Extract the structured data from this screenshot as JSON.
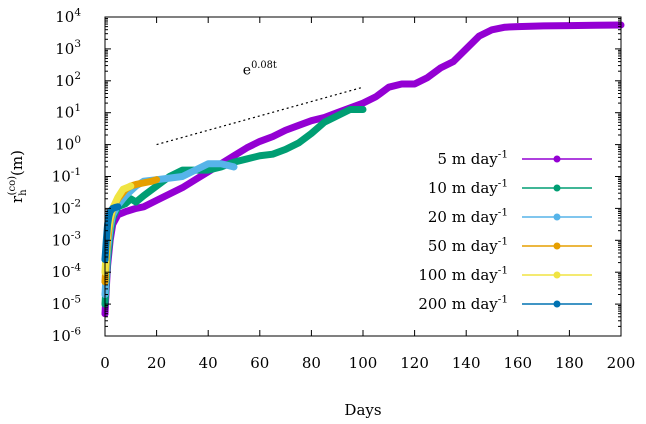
{
  "chart_data": {
    "type": "line",
    "xlabel": "Days",
    "ylabel": "r",
    "ylabel_sub": "h",
    "ylabel_sup": "(co)",
    "ylabel_unit": "(m)",
    "xlim": [
      0,
      200
    ],
    "ylim_log10": [
      -6,
      4
    ],
    "yscale": "log",
    "grid": false,
    "legend_position": "right",
    "x_ticks": [
      0,
      20,
      40,
      60,
      80,
      100,
      120,
      140,
      160,
      180,
      200
    ],
    "y_ticks_exp": [
      -6,
      -5,
      -4,
      -3,
      -2,
      -1,
      0,
      1,
      2,
      3,
      4
    ],
    "y_tick_base": "10",
    "annotation": {
      "text": "e",
      "sup": "0.08t",
      "line_x": [
        20,
        100
      ],
      "line_y_log10": [
        0.0,
        1.8
      ],
      "label_x": 60,
      "label_y_log10": 2.2
    },
    "series": [
      {
        "name": "5 m day",
        "name_sup": "-1",
        "color": "#9400d3",
        "x": [
          0,
          0.5,
          1,
          2,
          3,
          5,
          8,
          10,
          12,
          15,
          20,
          25,
          30,
          35,
          40,
          45,
          50,
          55,
          60,
          65,
          70,
          75,
          80,
          85,
          90,
          95,
          100,
          105,
          110,
          115,
          120,
          125,
          130,
          135,
          140,
          145,
          150,
          155,
          160,
          170,
          180,
          190,
          200
        ],
        "y_log10": [
          -5.3,
          -4.5,
          -3.8,
          -3.0,
          -2.5,
          -2.2,
          -2.1,
          -2.05,
          -2.0,
          -1.95,
          -1.75,
          -1.55,
          -1.35,
          -1.1,
          -0.85,
          -0.6,
          -0.35,
          -0.1,
          0.1,
          0.25,
          0.45,
          0.6,
          0.75,
          0.85,
          1.0,
          1.15,
          1.3,
          1.5,
          1.8,
          1.9,
          1.9,
          2.1,
          2.4,
          2.6,
          3.0,
          3.4,
          3.6,
          3.68,
          3.7,
          3.72,
          3.73,
          3.74,
          3.75
        ]
      },
      {
        "name": "10 m day",
        "name_sup": "-1",
        "color": "#009e73",
        "x": [
          0,
          0.5,
          1,
          2,
          3,
          5,
          8,
          10,
          12,
          15,
          20,
          25,
          30,
          35,
          40,
          45,
          50,
          55,
          60,
          65,
          70,
          75,
          80,
          85,
          90,
          95,
          100
        ],
        "y_log10": [
          -5.0,
          -4.3,
          -3.6,
          -2.8,
          -2.3,
          -1.95,
          -1.85,
          -1.7,
          -1.8,
          -1.6,
          -1.3,
          -1.0,
          -0.8,
          -0.8,
          -0.8,
          -0.7,
          -0.55,
          -0.45,
          -0.35,
          -0.3,
          -0.15,
          0.05,
          0.35,
          0.7,
          0.9,
          1.1,
          1.1
        ]
      },
      {
        "name": "20 m day",
        "name_sup": "-1",
        "color": "#56b4e9",
        "x": [
          0,
          0.5,
          1,
          2,
          3,
          5,
          8,
          10,
          12,
          15,
          20,
          25,
          30,
          35,
          40,
          45,
          50
        ],
        "y_log10": [
          -4.7,
          -4.0,
          -3.3,
          -2.6,
          -2.2,
          -1.9,
          -1.6,
          -1.45,
          -1.3,
          -1.15,
          -1.1,
          -1.05,
          -1.0,
          -0.8,
          -0.6,
          -0.6,
          -0.7
        ]
      },
      {
        "name": "50 m day",
        "name_sup": "-1",
        "color": "#e69f00",
        "x": [
          0,
          0.5,
          1,
          2,
          3,
          5,
          8,
          10,
          12,
          15,
          18,
          20
        ],
        "y_log10": [
          -4.3,
          -3.6,
          -3.0,
          -2.4,
          -2.0,
          -1.7,
          -1.4,
          -1.3,
          -1.25,
          -1.2,
          -1.15,
          -1.1
        ]
      },
      {
        "name": "100 m day",
        "name_sup": "-1",
        "color": "#f0e442",
        "x": [
          0,
          0.5,
          1,
          2,
          3,
          5,
          7,
          10
        ],
        "y_log10": [
          -4.0,
          -3.3,
          -2.8,
          -2.3,
          -2.0,
          -1.65,
          -1.4,
          -1.3
        ]
      },
      {
        "name": "200 m day",
        "name_sup": "-1",
        "color": "#0072b2",
        "x": [
          0,
          0.5,
          1,
          1.5,
          2,
          3,
          4,
          5
        ],
        "y_log10": [
          -3.6,
          -3.0,
          -2.5,
          -2.25,
          -2.1,
          -2.0,
          -1.97,
          -1.95
        ]
      }
    ]
  }
}
